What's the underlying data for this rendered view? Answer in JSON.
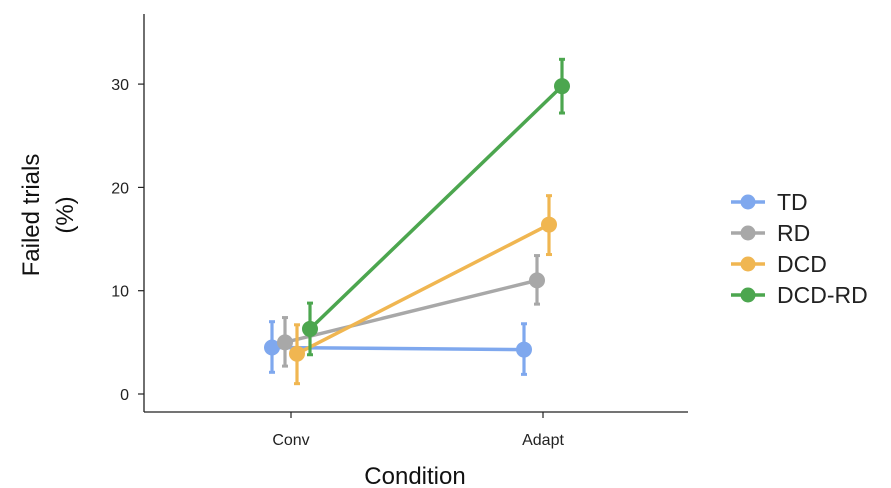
{
  "chart_data": {
    "type": "line",
    "title": "",
    "xlabel": "Condition",
    "ylabel_lines": [
      "Failed trials",
      "(%)"
    ],
    "categories": [
      "Conv",
      "Adapt"
    ],
    "yticks": [
      "0",
      "10",
      "20",
      "30"
    ],
    "ylim": [
      -2,
      36
    ],
    "grid": false,
    "legend_position": "right",
    "series": [
      {
        "name": "TD",
        "color": "#7FA8EE",
        "values": [
          4.5,
          4.3
        ],
        "err_low": [
          2.1,
          1.9
        ],
        "err_high": [
          7.0,
          6.8
        ]
      },
      {
        "name": "RD",
        "color": "#A8A8A8",
        "values": [
          5.0,
          11.0
        ],
        "err_low": [
          2.7,
          8.7
        ],
        "err_high": [
          7.4,
          13.4
        ]
      },
      {
        "name": "DCD",
        "color": "#F0B651",
        "values": [
          3.9,
          16.4
        ],
        "err_low": [
          1.0,
          13.5
        ],
        "err_high": [
          6.7,
          19.2
        ]
      },
      {
        "name": "DCD-RD",
        "color": "#4CA64F",
        "values": [
          6.3,
          29.8
        ],
        "err_low": [
          3.8,
          27.2
        ],
        "err_high": [
          8.8,
          32.4
        ]
      }
    ]
  }
}
